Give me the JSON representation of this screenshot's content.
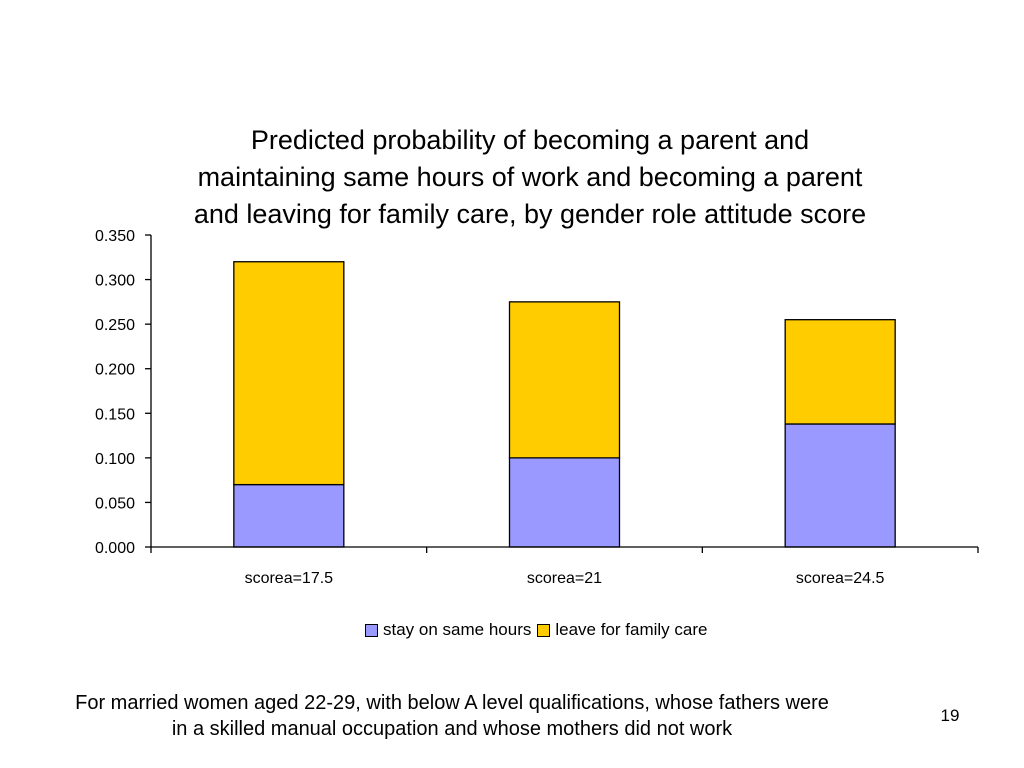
{
  "chart_data": {
    "type": "bar",
    "stacked": true,
    "title_lines": [
      "Predicted probability of becoming a parent and",
      "maintaining same hours of work and becoming a parent",
      "and leaving for family care, by gender role attitude score"
    ],
    "categories": [
      "scorea=17.5",
      "scorea=21",
      "scorea=24.5"
    ],
    "series": [
      {
        "name": "stay on same hours",
        "values": [
          0.07,
          0.1,
          0.138
        ],
        "color": "#9999FF"
      },
      {
        "name": "leave for family care",
        "values": [
          0.25,
          0.175,
          0.117
        ],
        "color": "#FFCC00"
      }
    ],
    "ylim": [
      0,
      0.35
    ],
    "yticks": [
      "0.000",
      "0.050",
      "0.100",
      "0.150",
      "0.200",
      "0.250",
      "0.300",
      "0.350"
    ],
    "grid": false,
    "legend_position": "bottom"
  },
  "caption_lines": [
    "For married women aged 22-29, with below A level qualifications, whose fathers were",
    "in a skilled manual occupation and whose mothers did not work"
  ],
  "slide_number": "19"
}
